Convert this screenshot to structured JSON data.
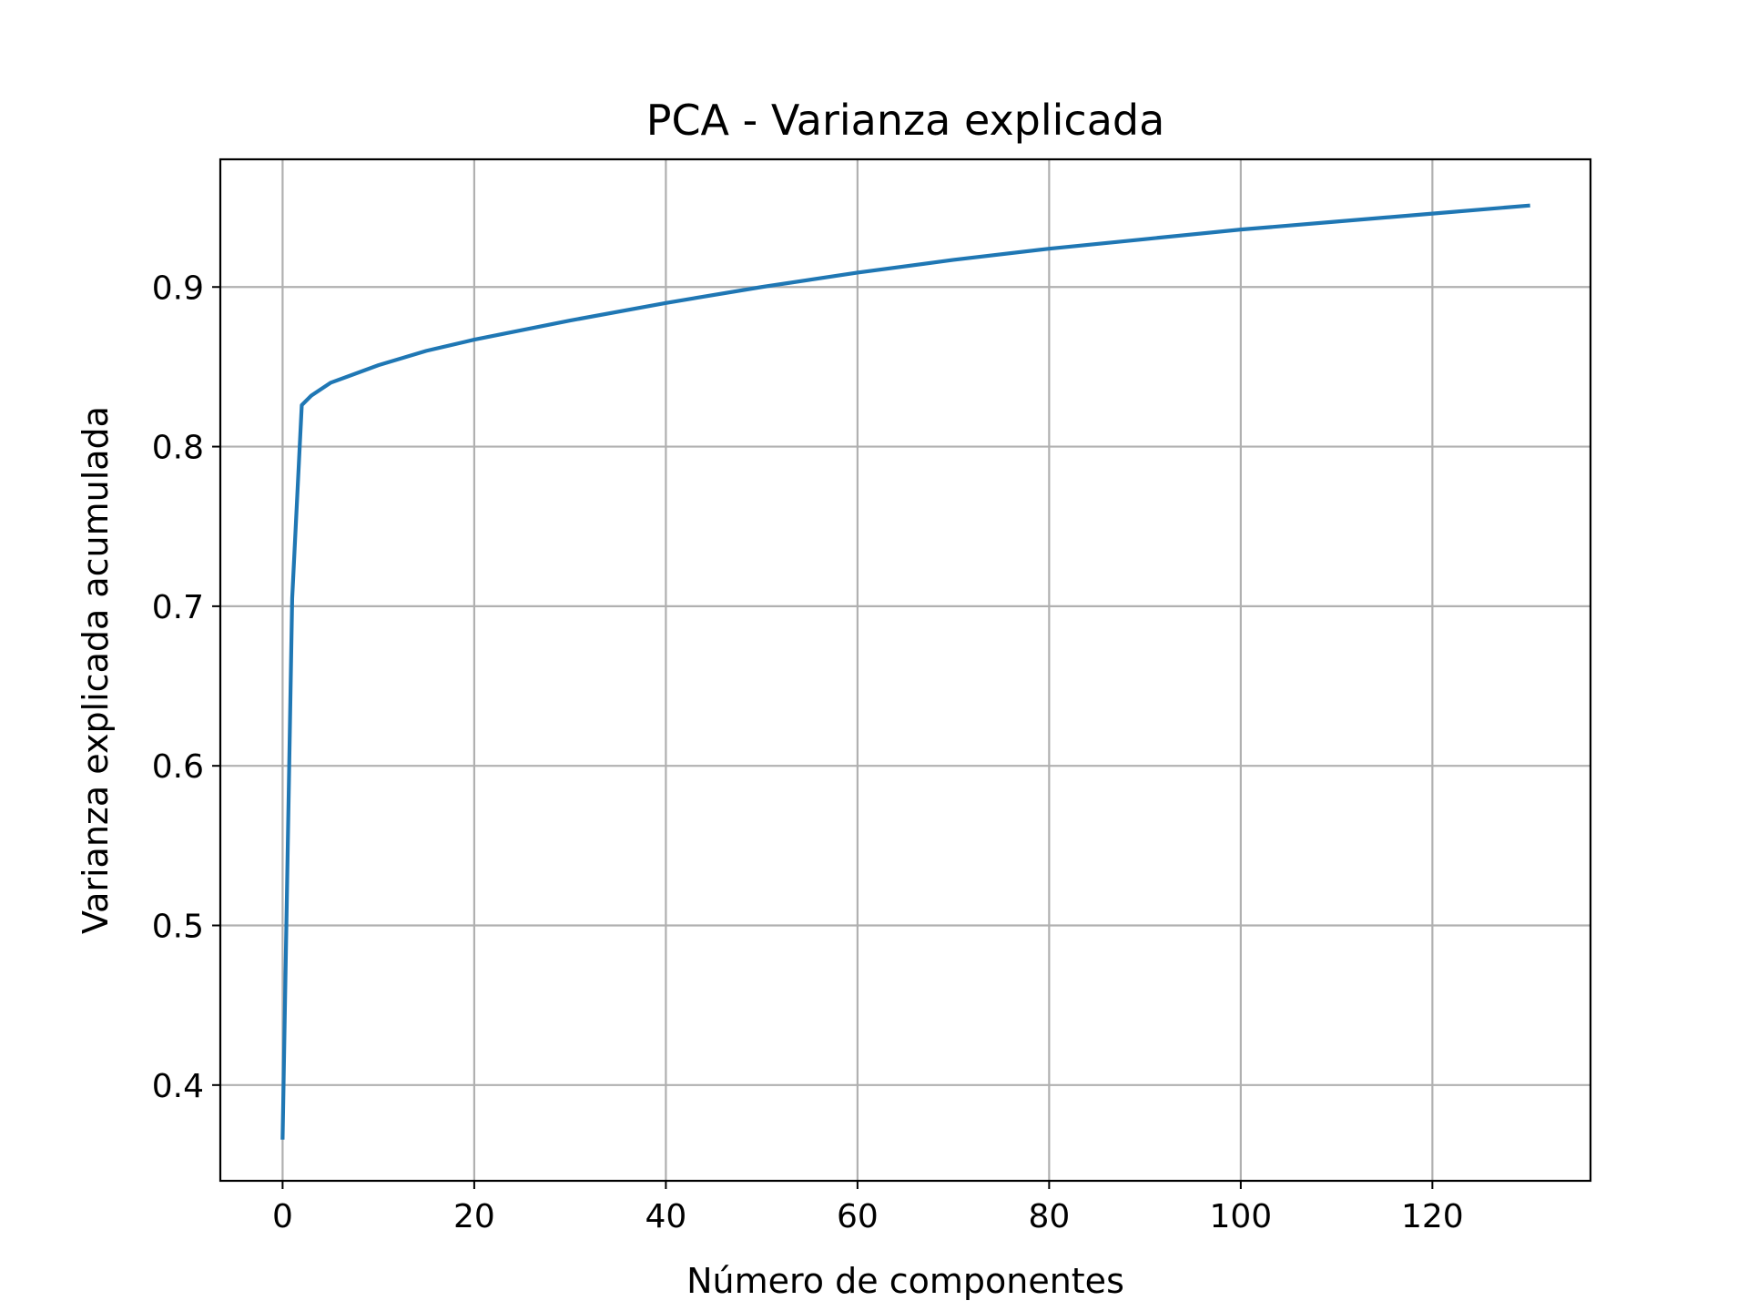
{
  "chart_data": {
    "type": "line",
    "title": "PCA - Varianza explicada",
    "xlabel": "Número de componentes",
    "ylabel": "Varianza explicada acumulada",
    "xlim": [
      -6.5,
      136.5
    ],
    "ylim": [
      0.34,
      0.98
    ],
    "xticks": [
      0,
      20,
      40,
      60,
      80,
      100,
      120
    ],
    "yticks": [
      0.4,
      0.5,
      0.6,
      0.7,
      0.8,
      0.9
    ],
    "xtick_labels": [
      "0",
      "20",
      "40",
      "60",
      "80",
      "100",
      "120"
    ],
    "ytick_labels": [
      "0.4",
      "0.5",
      "0.6",
      "0.7",
      "0.8",
      "0.9"
    ],
    "grid": true,
    "series": [
      {
        "color": "#1f77b4",
        "x": [
          0,
          1,
          2,
          3,
          5,
          10,
          15,
          20,
          30,
          40,
          50,
          60,
          70,
          80,
          90,
          100,
          110,
          120,
          130
        ],
        "y": [
          0.367,
          0.705,
          0.826,
          0.832,
          0.84,
          0.851,
          0.86,
          0.867,
          0.879,
          0.89,
          0.9,
          0.909,
          0.917,
          0.924,
          0.93,
          0.936,
          0.941,
          0.946,
          0.951
        ]
      }
    ]
  }
}
